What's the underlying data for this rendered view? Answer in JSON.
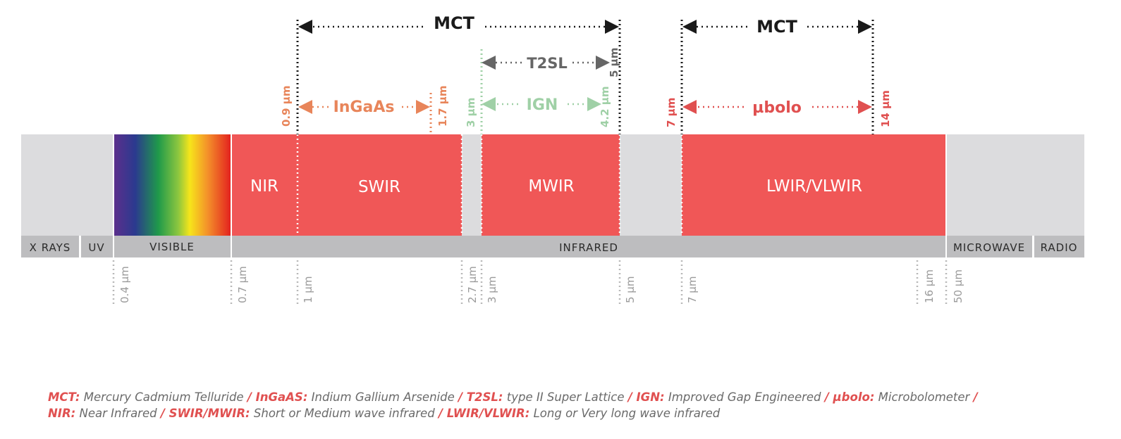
{
  "colors": {
    "band_red": "#f05757",
    "band_gray": "#dcdcde",
    "base_gray": "#bdbdbf",
    "mct": "#1a1a1a",
    "t2sl": "#666666",
    "ingaas": "#e8855a",
    "ign": "#9fd0a6",
    "ubolo": "#e05050",
    "tick_label": "#9a9a9a",
    "legend_text": "#6a6a6a",
    "legend_abbr": "#e05050"
  },
  "spectrum_bands": {
    "x_rays": "X RAYS",
    "uv": "UV",
    "visible": "VISIBLE",
    "infrared": "INFRARED",
    "microwave": "MICROWAVE",
    "radio": "RADIO"
  },
  "ir_bands": {
    "nir": "NIR",
    "swir": "SWIR",
    "mwir": "MWIR",
    "lwir": "LWIR/VLWIR"
  },
  "wavelength_ticks": [
    "0.4 µm",
    "0.7 µm",
    "1 µm",
    "2.7 µm",
    "3 µm",
    "5 µm",
    "7 µm",
    "16 µm",
    "50 µm"
  ],
  "technologies": {
    "mct_1": {
      "label": "MCT"
    },
    "mct_2": {
      "label": "MCT"
    },
    "t2sl": {
      "label": "T2SL",
      "end": "5 µm"
    },
    "ingaas": {
      "label": "InGaAs",
      "start": "0.9 µm",
      "end": "1.7 µm"
    },
    "ign": {
      "label": "IGN",
      "start": "3 µm",
      "end": "4.2 µm"
    },
    "ubolo": {
      "label": "µbolo",
      "start": "7 µm",
      "end": "14 µm"
    }
  },
  "legend": {
    "line1": [
      {
        "abbr": "MCT:",
        "desc": "Mercury Cadmium Telluride"
      },
      {
        "abbr": "/ InGaAS:",
        "desc": "Indium Gallium Arsenide"
      },
      {
        "abbr": "/ T2SL:",
        "desc": "type II Super Lattice"
      },
      {
        "abbr": "/ IGN:",
        "desc": "Improved Gap Engineered"
      },
      {
        "abbr": "/ µbolo:",
        "desc": "Microbolometer"
      },
      {
        "abbr": "/",
        "desc": ""
      }
    ],
    "line2": [
      {
        "abbr": "NIR:",
        "desc": "Near Infrared"
      },
      {
        "abbr": "/ SWIR/MWIR:",
        "desc": "Short or Medium wave infrared"
      },
      {
        "abbr": "/ LWIR/VLWIR:",
        "desc": "Long or Very long wave infrared"
      }
    ]
  }
}
